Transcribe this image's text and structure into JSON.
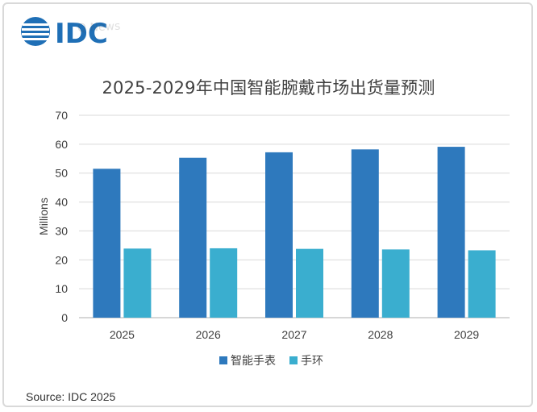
{
  "brand": {
    "logo_text": "IDC",
    "watermark_text": "Q News",
    "logo_color": "#1f6fb6"
  },
  "colors": {
    "smartwatch": "#2e79bd",
    "band": "#3aaecf",
    "grid": "#d9d9d9",
    "axis": "#bfbfbf",
    "text": "#404040"
  },
  "source": "Source: IDC 2025",
  "chart_data": {
    "type": "bar",
    "title": "2025-2029年中国智能腕戴市场出货量预测",
    "xlabel": "",
    "ylabel": "Millions",
    "ylim": [
      0,
      70
    ],
    "yticks": [
      "0",
      "10",
      "20",
      "30",
      "40",
      "50",
      "60",
      "70"
    ],
    "grid": true,
    "legend_position": "bottom",
    "categories": [
      "2025",
      "2026",
      "2027",
      "2028",
      "2029"
    ],
    "series": [
      {
        "name": "智能手表",
        "values": [
          51.5,
          55.3,
          57.2,
          58.2,
          59.1
        ]
      },
      {
        "name": "手环",
        "values": [
          23.9,
          24.0,
          23.8,
          23.6,
          23.3
        ]
      }
    ]
  }
}
